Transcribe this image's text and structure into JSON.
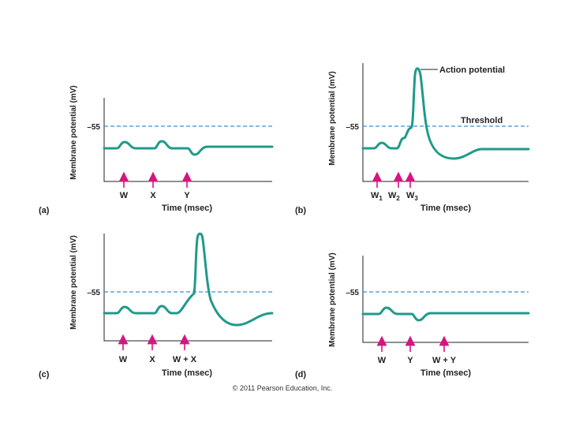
{
  "footer": {
    "copyright": "© 2011 Pearson Education, Inc."
  },
  "panels": [
    {
      "id": "a",
      "label": "(a)",
      "ylabel": "Membrane potential (mV)",
      "xlabel": "Time (msec)",
      "threshold_tick": "–55",
      "stimuli": [
        "W",
        "X",
        "Y"
      ]
    },
    {
      "id": "b",
      "label": "(b)",
      "ylabel": "Membrane potential (mV)",
      "xlabel": "Time (msec)",
      "threshold_tick": "–55",
      "threshold_label": "Threshold",
      "action_label": "Action potential",
      "stimuli": [
        {
          "base": "W",
          "sub": "1"
        },
        {
          "base": "W",
          "sub": "2"
        },
        {
          "base": "W",
          "sub": "3"
        }
      ]
    },
    {
      "id": "c",
      "label": "(c)",
      "ylabel": "Membrane potential (mV)",
      "xlabel": "Time (msec)",
      "threshold_tick": "–55",
      "stimuli": [
        "W",
        "X",
        "W + X"
      ]
    },
    {
      "id": "d",
      "label": "(d)",
      "ylabel": "Membrane potential (mV)",
      "xlabel": "Time (msec)",
      "threshold_tick": "–55",
      "stimuli": [
        "W",
        "Y",
        "W + Y"
      ]
    }
  ]
}
